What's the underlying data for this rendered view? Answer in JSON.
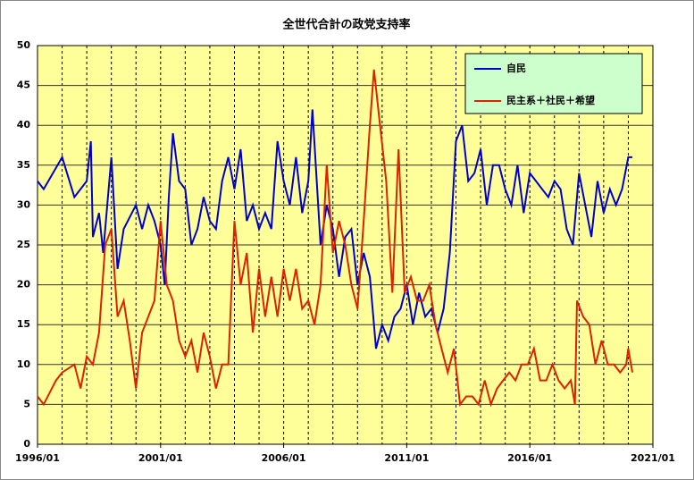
{
  "chart_data": {
    "type": "line",
    "title": "全世代合計の政党支持率",
    "xlim": [
      "1996/01",
      "2021/01"
    ],
    "xticks": [
      "1996/01",
      "2001/01",
      "2006/01",
      "2011/01",
      "2016/01",
      "2021/01"
    ],
    "minor_grid_months": 12,
    "ylim": [
      0,
      50
    ],
    "yticks": [
      0,
      5,
      10,
      15,
      20,
      25,
      30,
      35,
      40,
      45,
      50
    ],
    "grid": true,
    "legend": "upper right",
    "background": "#ffff99",
    "legend_background": "#ccffcc",
    "series": [
      {
        "name": "自民",
        "color": "#0000cc",
        "x": [
          "1996/01",
          "1996/04",
          "1997/01",
          "1997/07",
          "1998/01",
          "1998/03",
          "1998/04",
          "1998/07",
          "1998/09",
          "1999/01",
          "1999/04",
          "1999/07",
          "2000/01",
          "2000/04",
          "2000/07",
          "2000/10",
          "2001/01",
          "2001/03",
          "2001/05",
          "2001/07",
          "2001/10",
          "2002/01",
          "2002/04",
          "2002/07",
          "2002/10",
          "2003/01",
          "2003/04",
          "2003/07",
          "2003/10",
          "2004/01",
          "2004/04",
          "2004/07",
          "2004/10",
          "2005/01",
          "2005/04",
          "2005/07",
          "2005/10",
          "2006/01",
          "2006/04",
          "2006/07",
          "2006/10",
          "2007/01",
          "2007/03",
          "2007/07",
          "2007/10",
          "2008/01",
          "2008/04",
          "2008/07",
          "2008/10",
          "2009/01",
          "2009/04",
          "2009/07",
          "2009/10",
          "2010/01",
          "2010/04",
          "2010/07",
          "2010/10",
          "2011/01",
          "2011/04",
          "2011/07",
          "2011/10",
          "2012/01",
          "2012/04",
          "2012/07",
          "2012/10",
          "2013/01",
          "2013/04",
          "2013/07",
          "2013/10",
          "2014/01",
          "2014/04",
          "2014/07",
          "2014/10",
          "2015/01",
          "2015/04",
          "2015/07",
          "2015/10",
          "2016/01",
          "2016/04",
          "2016/07",
          "2016/10",
          "2017/01",
          "2017/04",
          "2017/07",
          "2017/10",
          "2018/01",
          "2018/04",
          "2018/07",
          "2018/10",
          "2019/01",
          "2019/04",
          "2019/07",
          "2019/10",
          "2020/01",
          "2020/03"
        ],
        "values": [
          33,
          32,
          36,
          31,
          33,
          38,
          26,
          29,
          24,
          36,
          22,
          27,
          30,
          27,
          30,
          28,
          25,
          20,
          31,
          39,
          33,
          32,
          25,
          27,
          31,
          28,
          27,
          33,
          36,
          32,
          37,
          28,
          30,
          27,
          29,
          27,
          38,
          33,
          30,
          36,
          29,
          33,
          42,
          25,
          30,
          27,
          21,
          26,
          27,
          20,
          24,
          21,
          12,
          15,
          13,
          16,
          17,
          20,
          15,
          19,
          16,
          17,
          14,
          17,
          24,
          38,
          40,
          33,
          34,
          37,
          30,
          35,
          35,
          32,
          30,
          35,
          29,
          34,
          33,
          32,
          31,
          33,
          32,
          27,
          25,
          34,
          30,
          26,
          33,
          29,
          32,
          30,
          32,
          36,
          36
        ]
      },
      {
        "name": "民主系＋社民＋希望",
        "color": "#dd2200",
        "x": [
          "1996/01",
          "1996/04",
          "1996/10",
          "1997/01",
          "1997/07",
          "1997/10",
          "1998/01",
          "1998/04",
          "1998/07",
          "1998/10",
          "1999/01",
          "1999/04",
          "1999/07",
          "1999/10",
          "2000/01",
          "2000/04",
          "2000/07",
          "2000/10",
          "2001/01",
          "2001/04",
          "2001/07",
          "2001/10",
          "2002/01",
          "2002/04",
          "2002/07",
          "2002/10",
          "2003/01",
          "2003/04",
          "2003/07",
          "2003/10",
          "2004/01",
          "2004/04",
          "2004/07",
          "2004/10",
          "2005/01",
          "2005/04",
          "2005/07",
          "2005/10",
          "2006/01",
          "2006/04",
          "2006/07",
          "2006/10",
          "2007/01",
          "2007/04",
          "2007/07",
          "2007/10",
          "2008/01",
          "2008/04",
          "2008/07",
          "2008/10",
          "2009/01",
          "2009/04",
          "2009/07",
          "2009/09",
          "2009/12",
          "2010/03",
          "2010/06",
          "2010/09",
          "2010/12",
          "2011/03",
          "2011/06",
          "2011/09",
          "2011/12",
          "2012/03",
          "2012/06",
          "2012/09",
          "2012/12",
          "2013/03",
          "2013/06",
          "2013/09",
          "2013/12",
          "2014/03",
          "2014/06",
          "2014/09",
          "2014/12",
          "2015/03",
          "2015/06",
          "2015/09",
          "2015/12",
          "2016/03",
          "2016/06",
          "2016/09",
          "2016/12",
          "2017/03",
          "2017/06",
          "2017/09",
          "2017/11",
          "2017/12",
          "2018/03",
          "2018/06",
          "2018/09",
          "2018/12",
          "2019/03",
          "2019/06",
          "2019/09",
          "2019/12",
          "2020/01",
          "2020/03"
        ],
        "values": [
          6,
          5,
          8,
          9,
          10,
          7,
          11,
          10,
          14,
          25,
          27,
          16,
          18,
          13,
          7,
          14,
          16,
          18,
          28,
          20,
          18,
          13,
          11,
          13,
          9,
          14,
          11,
          7,
          10,
          10,
          28,
          20,
          24,
          14,
          22,
          16,
          21,
          16,
          22,
          18,
          22,
          17,
          18,
          15,
          20,
          35,
          24,
          28,
          25,
          20,
          17,
          28,
          40,
          47,
          40,
          33,
          19,
          37,
          19,
          21,
          18,
          18,
          20,
          15,
          12,
          9,
          12,
          5,
          6,
          6,
          5,
          8,
          5,
          7,
          8,
          9,
          8,
          10,
          10,
          12,
          8,
          8,
          10,
          8,
          7,
          8,
          5,
          18,
          16,
          15,
          10,
          13,
          10,
          10,
          9,
          10,
          12,
          9
        ]
      }
    ]
  }
}
